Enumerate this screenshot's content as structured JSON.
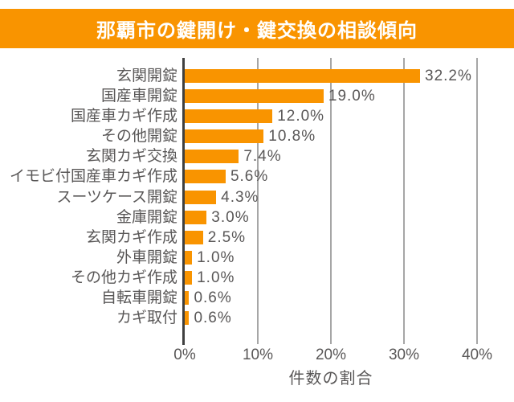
{
  "title": "那覇市の鍵開け・鍵交換の相談傾向",
  "colors": {
    "accent_orange": "#F99400",
    "axis_dark": "#404040",
    "gridline": "#A6A6A6",
    "text_gray": "#595757",
    "title_text": "#FFFFFF",
    "background": "#FFFFFF"
  },
  "chart_data": {
    "type": "bar",
    "orientation": "horizontal",
    "title": "那覇市の鍵開け・鍵交換の相談傾向",
    "xlabel": "件数の割合",
    "ylabel": "",
    "xlim": [
      0,
      40
    ],
    "x_ticks": [
      "0%",
      "10%",
      "20%",
      "30%",
      "40%"
    ],
    "grid": "vertical",
    "legend": "none",
    "bar_color": "#F99400",
    "categories": [
      "玄関開錠",
      "国産車開錠",
      "国産車カギ作成",
      "その他開錠",
      "玄関カギ交換",
      "イモビ付国産車カギ作成",
      "スーツケース開錠",
      "金庫開錠",
      "玄関カギ作成",
      "外車開錠",
      "その他カギ作成",
      "自転車開錠",
      "カギ取付"
    ],
    "values": [
      32.2,
      19.0,
      12.0,
      10.8,
      7.4,
      5.6,
      4.3,
      3.0,
      2.5,
      1.0,
      1.0,
      0.6,
      0.6
    ],
    "value_labels": [
      "32.2%",
      "19.0%",
      "12.0%",
      "10.8%",
      "7.4%",
      "5.6%",
      "4.3%",
      "3.0%",
      "2.5%",
      "1.0%",
      "1.0%",
      "0.6%",
      "0.6%"
    ]
  }
}
